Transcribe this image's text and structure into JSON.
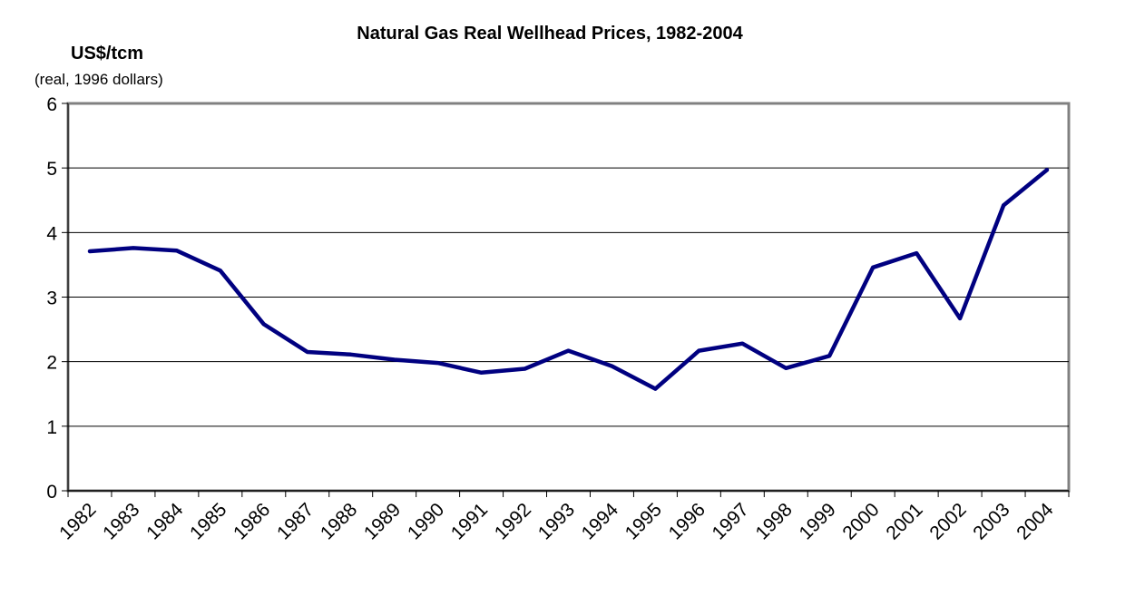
{
  "chart_data": {
    "type": "line",
    "title": "Natural Gas Real Wellhead Prices, 1982-2004",
    "ylabel": "US$/tcm",
    "ylabel_sub": "(real, 1996 dollars)",
    "xlabel": "",
    "ylim": [
      0,
      6
    ],
    "yticks": [
      "0",
      "1",
      "2",
      "3",
      "4",
      "5",
      "6"
    ],
    "grid": true,
    "legend": "none",
    "line_color": "#000080",
    "categories": [
      "1982",
      "1983",
      "1984",
      "1985",
      "1986",
      "1987",
      "1988",
      "1989",
      "1990",
      "1991",
      "1992",
      "1993",
      "1994",
      "1995",
      "1996",
      "1997",
      "1998",
      "1999",
      "2000",
      "2001",
      "2002",
      "2003",
      "2004"
    ],
    "series": [
      {
        "values": [
          3.71,
          3.76,
          3.72,
          3.41,
          2.58,
          2.15,
          2.11,
          2.03,
          1.98,
          1.83,
          1.89,
          2.17,
          1.93,
          1.58,
          2.17,
          2.28,
          1.9,
          2.09,
          3.46,
          3.68,
          2.67,
          4.42,
          4.97
        ]
      }
    ]
  }
}
